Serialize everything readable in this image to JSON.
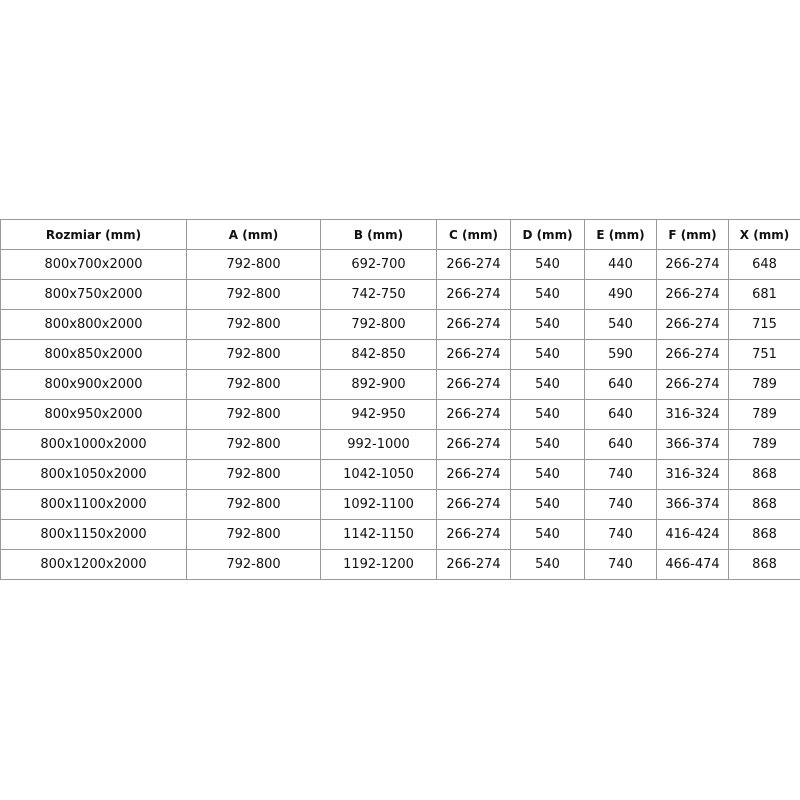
{
  "headers": [
    "Rozmiar (mm)",
    "A (mm)",
    "B (mm)",
    "C (mm)",
    "D (mm)",
    "E (mm)",
    "F (mm)",
    "X (mm)"
  ],
  "rows": [
    [
      "800x700x2000",
      "792-800",
      "692-700",
      "266-274",
      "540",
      "440",
      "266-274",
      "648"
    ],
    [
      "800x750x2000",
      "792-800",
      "742-750",
      "266-274",
      "540",
      "490",
      "266-274",
      "681"
    ],
    [
      "800x800x2000",
      "792-800",
      "792-800",
      "266-274",
      "540",
      "540",
      "266-274",
      "715"
    ],
    [
      "800x850x2000",
      "792-800",
      "842-850",
      "266-274",
      "540",
      "590",
      "266-274",
      "751"
    ],
    [
      "800x900x2000",
      "792-800",
      "892-900",
      "266-274",
      "540",
      "640",
      "266-274",
      "789"
    ],
    [
      "800x950x2000",
      "792-800",
      "942-950",
      "266-274",
      "540",
      "640",
      "316-324",
      "789"
    ],
    [
      "800x1000x2000",
      "792-800",
      "992-1000",
      "266-274",
      "540",
      "640",
      "366-374",
      "789"
    ],
    [
      "800x1050x2000",
      "792-800",
      "1042-1050",
      "266-274",
      "540",
      "740",
      "316-324",
      "868"
    ],
    [
      "800x1100x2000",
      "792-800",
      "1092-1100",
      "266-274",
      "540",
      "740",
      "366-374",
      "868"
    ],
    [
      "800x1150x2000",
      "792-800",
      "1142-1150",
      "266-274",
      "540",
      "740",
      "416-424",
      "868"
    ],
    [
      "800x1200x2000",
      "792-800",
      "1192-1200",
      "266-274",
      "540",
      "740",
      "466-474",
      "868"
    ]
  ]
}
